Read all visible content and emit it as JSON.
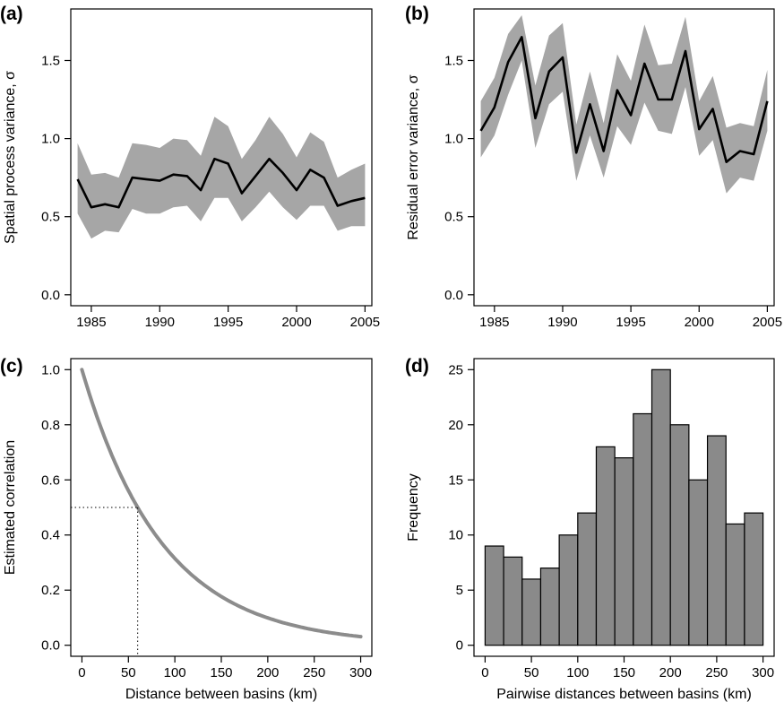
{
  "figure": {
    "colors": {
      "band": "#a6a6a6",
      "line": "#000000",
      "curve": "#8c8c8c",
      "bar": "#8a8a8a",
      "bar_edge": "#000000"
    }
  },
  "chart_data": [
    {
      "id": "a",
      "panel_label": "(a)",
      "type": "line",
      "xlabel": "",
      "ylabel": "Spatial process variance, σ",
      "xlim": [
        1983.5,
        2005.5
      ],
      "ylim": [
        -0.07,
        1.83
      ],
      "xticks": [
        1985,
        1990,
        1995,
        2000,
        2005
      ],
      "xtick_labels": [
        "1985",
        "1990",
        "1995",
        "2000",
        "2005"
      ],
      "yticks": [
        0.0,
        0.5,
        1.0,
        1.5
      ],
      "ytick_labels": [
        "0.0",
        "0.5",
        "1.0",
        "1.5"
      ],
      "x": [
        1984,
        1985,
        1986,
        1987,
        1988,
        1989,
        1990,
        1991,
        1992,
        1993,
        1994,
        1995,
        1996,
        1997,
        1998,
        1999,
        2000,
        2001,
        2002,
        2003,
        2004,
        2005
      ],
      "series": [
        {
          "values": [
            0.74,
            0.56,
            0.58,
            0.56,
            0.75,
            0.74,
            0.73,
            0.77,
            0.76,
            0.67,
            0.87,
            0.84,
            0.65,
            0.76,
            0.87,
            0.78,
            0.67,
            0.8,
            0.75,
            0.57,
            0.6,
            0.62
          ],
          "lower": [
            0.52,
            0.36,
            0.41,
            0.4,
            0.55,
            0.52,
            0.52,
            0.56,
            0.57,
            0.47,
            0.62,
            0.62,
            0.47,
            0.56,
            0.66,
            0.56,
            0.48,
            0.57,
            0.57,
            0.41,
            0.44,
            0.44
          ],
          "upper": [
            0.97,
            0.77,
            0.78,
            0.75,
            0.97,
            0.96,
            0.94,
            1.0,
            0.99,
            0.89,
            1.14,
            1.08,
            0.87,
            0.99,
            1.14,
            1.03,
            0.88,
            1.04,
            0.98,
            0.75,
            0.8,
            0.84
          ]
        }
      ]
    },
    {
      "id": "b",
      "panel_label": "(b)",
      "type": "line",
      "xlabel": "",
      "ylabel": "Residual error variance, σ",
      "xlim": [
        1983.5,
        2005.5
      ],
      "ylim": [
        -0.07,
        1.83
      ],
      "xticks": [
        1985,
        1990,
        1995,
        2000,
        2005
      ],
      "xtick_labels": [
        "1985",
        "1990",
        "1995",
        "2000",
        "2005"
      ],
      "yticks": [
        0.0,
        0.5,
        1.0,
        1.5
      ],
      "ytick_labels": [
        "0.0",
        "0.5",
        "1.0",
        "1.5"
      ],
      "x": [
        1984,
        1985,
        1986,
        1987,
        1988,
        1989,
        1990,
        1991,
        1992,
        1993,
        1994,
        1995,
        1996,
        1997,
        1998,
        1999,
        2000,
        2001,
        2002,
        2003,
        2004,
        2005
      ],
      "series": [
        {
          "values": [
            1.05,
            1.2,
            1.49,
            1.65,
            1.13,
            1.43,
            1.52,
            0.91,
            1.22,
            0.92,
            1.31,
            1.15,
            1.48,
            1.25,
            1.25,
            1.56,
            1.06,
            1.19,
            0.85,
            0.92,
            0.9,
            1.24
          ],
          "lower": [
            0.88,
            1.02,
            1.28,
            1.5,
            0.94,
            1.22,
            1.3,
            0.73,
            1.02,
            0.75,
            1.08,
            0.96,
            1.23,
            1.05,
            1.03,
            1.33,
            0.89,
            0.99,
            0.65,
            0.75,
            0.73,
            1.05
          ],
          "upper": [
            1.24,
            1.39,
            1.67,
            1.79,
            1.34,
            1.66,
            1.74,
            1.09,
            1.43,
            1.1,
            1.54,
            1.37,
            1.73,
            1.47,
            1.48,
            1.78,
            1.24,
            1.4,
            1.07,
            1.1,
            1.08,
            1.44
          ]
        }
      ]
    },
    {
      "id": "c",
      "panel_label": "(c)",
      "type": "line",
      "xlabel": "Distance between basins (km)",
      "ylabel": "Estimated correlation",
      "xlim": [
        -12,
        312
      ],
      "ylim": [
        -0.04,
        1.04
      ],
      "xticks": [
        0,
        50,
        100,
        150,
        200,
        250,
        300
      ],
      "xtick_labels": [
        "0",
        "50",
        "100",
        "150",
        "200",
        "250",
        "300"
      ],
      "yticks": [
        0.0,
        0.2,
        0.4,
        0.6,
        0.8,
        1.0
      ],
      "ytick_labels": [
        "0.0",
        "0.2",
        "0.4",
        "0.6",
        "0.8",
        "1.0"
      ],
      "curve": {
        "form": "exponential decay",
        "y0": 1.0,
        "half_distance_km": 60,
        "x_range": [
          0,
          300
        ]
      },
      "reference": {
        "x": 60,
        "y": 0.5
      }
    },
    {
      "id": "d",
      "panel_label": "(d)",
      "type": "bar",
      "xlabel": "Pairwise distances between basins (km)",
      "ylabel": "Frequency",
      "xlim": [
        -12,
        312
      ],
      "ylim": [
        -1,
        26
      ],
      "xticks": [
        0,
        50,
        100,
        150,
        200,
        250,
        300
      ],
      "xtick_labels": [
        "0",
        "50",
        "100",
        "150",
        "200",
        "250",
        "300"
      ],
      "yticks": [
        0,
        5,
        10,
        15,
        20,
        25
      ],
      "ytick_labels": [
        "0",
        "5",
        "10",
        "15",
        "20",
        "25"
      ],
      "bin_width": 20,
      "bins_start": [
        0,
        20,
        40,
        60,
        80,
        100,
        120,
        140,
        160,
        180,
        200,
        220,
        240,
        260,
        280
      ],
      "values": [
        9,
        8,
        6,
        7,
        10,
        12,
        18,
        17,
        21,
        25,
        20,
        15,
        19,
        11,
        12
      ]
    }
  ]
}
